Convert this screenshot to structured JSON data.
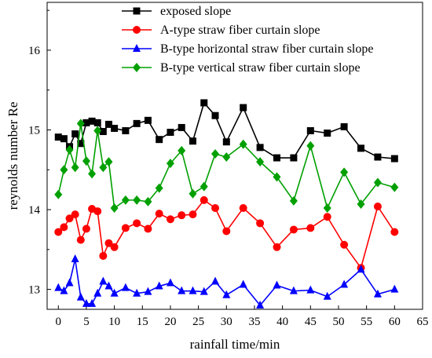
{
  "chart_data": {
    "type": "line",
    "title": "",
    "xlabel": "rainfall time/min",
    "ylabel": "reynolds number Re",
    "xlim": [
      -2,
      65
    ],
    "ylim": [
      12.75,
      16.6
    ],
    "xticks": [
      0,
      5,
      10,
      15,
      20,
      25,
      30,
      35,
      40,
      45,
      50,
      55,
      60,
      65
    ],
    "yticks": [
      13,
      14,
      15,
      16
    ],
    "grid": false,
    "legend_position": "top",
    "series": [
      {
        "name": "exposed slope",
        "color": "#000000",
        "marker": "square",
        "x": [
          0,
          1,
          2,
          3,
          4,
          5,
          6,
          7,
          8,
          9,
          10,
          12,
          14,
          16,
          18,
          20,
          22,
          24,
          26,
          28,
          30,
          33,
          36,
          39,
          42,
          45,
          48,
          51,
          54,
          57,
          60
        ],
        "y": [
          14.91,
          14.89,
          14.79,
          14.95,
          14.83,
          15.09,
          15.11,
          15.09,
          14.98,
          15.07,
          15.02,
          14.99,
          15.08,
          15.12,
          14.88,
          14.97,
          15.03,
          14.86,
          15.34,
          15.18,
          14.85,
          15.28,
          14.78,
          14.65,
          14.65,
          14.99,
          14.96,
          15.04,
          14.77,
          14.66,
          14.64
        ]
      },
      {
        "name": "A-type straw fiber curtain slope",
        "color": "#ff0000",
        "marker": "circle",
        "x": [
          0,
          1,
          2,
          3,
          4,
          5,
          6,
          7,
          8,
          9,
          10,
          12,
          14,
          16,
          18,
          20,
          22,
          24,
          26,
          28,
          30,
          33,
          36,
          39,
          42,
          45,
          48,
          51,
          54,
          57,
          60
        ],
        "y": [
          13.72,
          13.78,
          13.89,
          13.94,
          13.62,
          13.76,
          14.01,
          13.98,
          13.42,
          13.58,
          13.53,
          13.77,
          13.83,
          13.76,
          13.95,
          13.88,
          13.93,
          13.94,
          14.12,
          14.02,
          13.73,
          14.02,
          13.83,
          13.53,
          13.75,
          13.77,
          13.91,
          13.56,
          13.27,
          14.04,
          13.72
        ]
      },
      {
        "name": "B-type horizontal straw fiber curtain slope",
        "color": "#0000ff",
        "marker": "triangle",
        "x": [
          0,
          1,
          2,
          3,
          4,
          5,
          6,
          7,
          8,
          9,
          10,
          12,
          14,
          16,
          18,
          20,
          22,
          24,
          26,
          28,
          30,
          33,
          36,
          39,
          42,
          45,
          48,
          51,
          54,
          57,
          60
        ],
        "y": [
          13.02,
          12.98,
          13.08,
          13.38,
          12.9,
          12.82,
          12.82,
          12.95,
          13.1,
          13.04,
          12.95,
          13.02,
          12.95,
          12.97,
          13.04,
          13.08,
          12.98,
          12.98,
          12.97,
          13.1,
          12.93,
          13.06,
          12.8,
          13.05,
          12.98,
          12.99,
          12.91,
          13.06,
          13.25,
          12.94,
          13.0
        ]
      },
      {
        "name": "B-type vertical straw fiber curtain slope",
        "color": "#00a000",
        "marker": "diamond",
        "x": [
          0,
          1,
          2,
          3,
          4,
          5,
          6,
          7,
          8,
          9,
          10,
          12,
          14,
          16,
          18,
          20,
          22,
          24,
          26,
          28,
          30,
          33,
          36,
          39,
          42,
          45,
          48,
          51,
          54,
          57,
          60
        ],
        "y": [
          14.19,
          14.5,
          14.75,
          14.53,
          15.08,
          14.61,
          14.45,
          14.99,
          14.53,
          14.6,
          14.02,
          14.12,
          14.12,
          14.1,
          14.27,
          14.58,
          14.74,
          14.2,
          14.29,
          14.7,
          14.66,
          14.82,
          14.6,
          14.41,
          14.11,
          14.8,
          14.02,
          14.47,
          14.07,
          14.34,
          14.28
        ]
      }
    ]
  }
}
